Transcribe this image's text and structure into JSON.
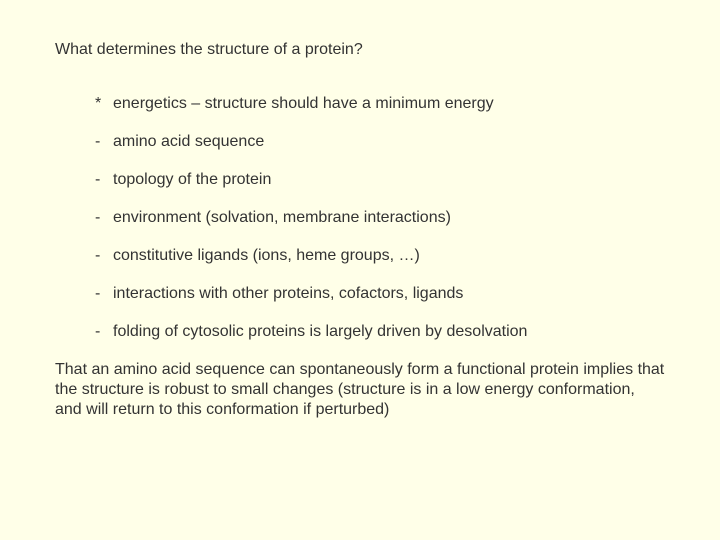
{
  "background_color": "#ffffe8",
  "text_color": "#333333",
  "font_family": "Verdana, Geneva, sans-serif",
  "font_size_pt": 12,
  "title": "What determines the structure of a protein?",
  "items": [
    {
      "marker": "*",
      "text": "energetics – structure should have a minimum energy"
    },
    {
      "marker": "-",
      "text": "amino acid sequence"
    },
    {
      "marker": "-",
      "text": "topology of the protein"
    },
    {
      "marker": "-",
      "text": "environment (solvation, membrane interactions)"
    },
    {
      "marker": "-",
      "text": "constitutive ligands (ions, heme groups, …)"
    },
    {
      "marker": "-",
      "text": "interactions with other proteins, cofactors, ligands"
    },
    {
      "marker": "-",
      "text": "folding of cytosolic proteins is largely driven by desolvation"
    }
  ],
  "closing": "That an amino acid sequence can spontaneously form a functional protein implies that the structure is robust to small changes (structure is in a low energy conformation, and will return to this conformation if perturbed)"
}
